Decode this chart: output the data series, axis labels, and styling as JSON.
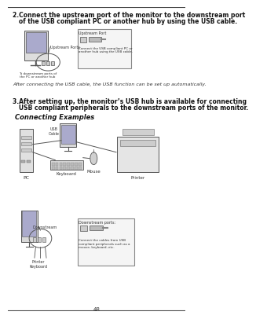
{
  "background_color": "#ffffff",
  "border_color": "#888888",
  "title_bold_text_1": "2.Connect the upstream port of the monitor to the downstream port",
  "title_bold_text_2": "   of the USB compliant PC or another hub by using the USB cable.",
  "after_text": "After connecting the USB cable, the USB function can be set up automatically.",
  "section3_bold_1": "3.After setting up, the monitor’s USB hub is available for connecting",
  "section3_bold_2": "   USB compliant peripherals to the downstream ports of the monitor.",
  "connecting_examples": "Connecting Examples",
  "label_pc": "PC",
  "label_keyboard": "Keyboard",
  "label_mouse": "Mouse",
  "label_printer": "Printer",
  "label_usb_cable": "USB\nCable",
  "label_downstream": "Downstream",
  "label_downstream_ports": "Downstream ports:",
  "label_upstream_ports": "Upstream Ports",
  "label_upstream_port": "Upstream Port",
  "label_to_downstream": "To downstream ports of\nthe PC or another hub",
  "label_connect_usb": "Connect the USB compliant PC or\nanother hub using the USB cable.",
  "label_connect_cables": "Connect the cables from USB\ncompliant peripherals such as a\nmouse, keyboard, etc.",
  "label_printer_keyboard": "Printer\nKeyboard",
  "page_number": "48"
}
